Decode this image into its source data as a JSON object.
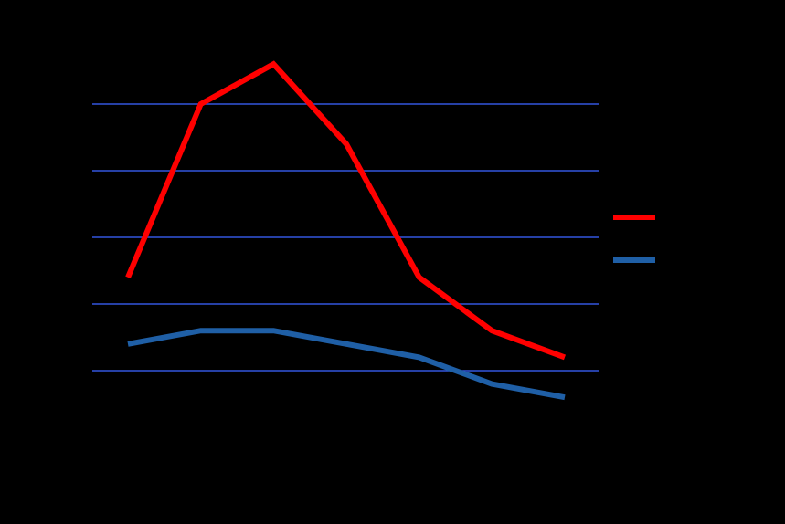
{
  "chart_data": {
    "type": "line",
    "background": "#000000",
    "grid": true,
    "grid_color": "#3355dd",
    "legend_position": "right",
    "x": [
      1,
      2,
      3,
      4,
      5,
      6,
      7
    ],
    "ylim": [
      0,
      6
    ],
    "yticks": [
      1,
      2,
      3,
      4,
      5
    ],
    "series": [
      {
        "color": "#ff0000",
        "values": [
          2.4,
          5.0,
          5.6,
          4.4,
          2.4,
          1.6,
          1.2
        ]
      },
      {
        "color": "#1f5fa6",
        "values": [
          1.4,
          1.6,
          1.6,
          1.4,
          1.2,
          0.8,
          0.6
        ]
      }
    ]
  }
}
